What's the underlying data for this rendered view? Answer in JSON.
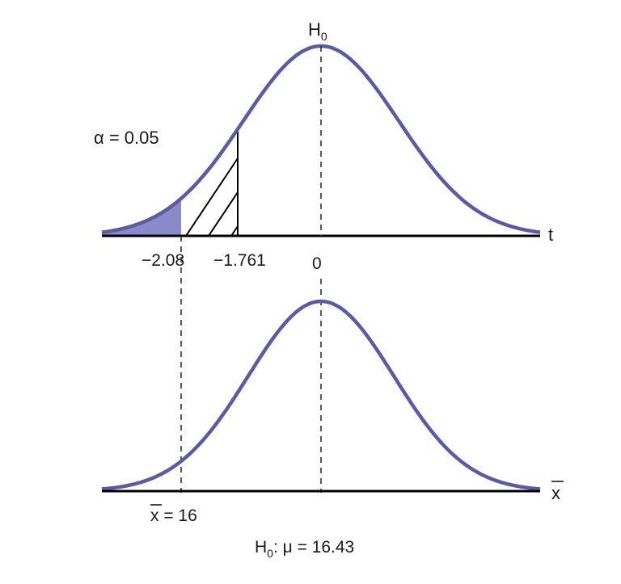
{
  "top_curve": {
    "h0_label": "H",
    "h0_sub": "0",
    "alpha_label": "α = 0.05",
    "axis_label": "t",
    "tick_critical": "−2.08",
    "tick_test": "−1.761",
    "tick_zero": "0"
  },
  "bottom_curve": {
    "axis_label": "x",
    "xbar_label": "x = 16",
    "null_hyp_h": "H",
    "null_hyp_sub": "0",
    "null_hyp_rest": ": μ = 16.43"
  },
  "colors": {
    "curve": "#5b5ba3",
    "shade": "#8a8ac8",
    "axis": "#000000",
    "dash": "#333333"
  }
}
